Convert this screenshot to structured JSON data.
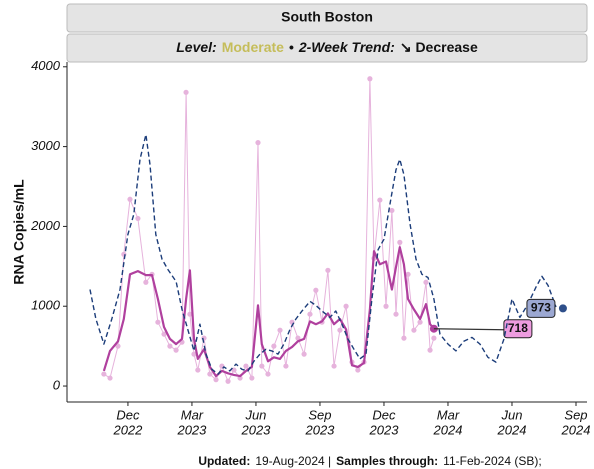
{
  "chart_data": {
    "type": "line",
    "title": "South Boston",
    "subtitle": [
      {
        "text": "Level:",
        "style": "bold-italic"
      },
      {
        "text": "Moderate",
        "style": "bold",
        "color": "#c5bd5a"
      },
      {
        "text": "•",
        "style": "bold"
      },
      {
        "text": "2-Week Trend:",
        "style": "bold-italic"
      },
      {
        "text": "↘ Decrease",
        "style": "bold"
      }
    ],
    "y_label": "RNA Copies/mL",
    "footer": [
      {
        "text": "Updated:",
        "style": "bold"
      },
      {
        "text": "19-Aug-2024 |"
      },
      {
        "text": "Samples through:",
        "style": "bold"
      },
      {
        "text": "11-Feb-2024 (SB);"
      }
    ],
    "xlim": [
      2022.679,
      2024.71
    ],
    "xticks": [
      {
        "value": 2022.917,
        "label": [
          "Dec",
          "2022"
        ]
      },
      {
        "value": 2023.167,
        "label": [
          "Mar",
          "2023"
        ]
      },
      {
        "value": 2023.417,
        "label": [
          "Jun",
          "2023"
        ]
      },
      {
        "value": 2023.667,
        "label": [
          "Sep",
          "2023"
        ]
      },
      {
        "value": 2023.917,
        "label": [
          "Dec",
          "2023"
        ]
      },
      {
        "value": 2024.167,
        "label": [
          "Mar",
          "2024"
        ]
      },
      {
        "value": 2024.417,
        "label": [
          "Jun",
          "2024"
        ]
      },
      {
        "value": 2024.667,
        "label": [
          "Sep",
          "2024"
        ]
      }
    ],
    "ylim": [
      -200,
      4060
    ],
    "yticks": [
      0,
      1000,
      2000,
      3000,
      4000
    ],
    "x": [
      2022.823,
      2022.847,
      2022.878,
      2022.901,
      2022.925,
      2022.956,
      2022.987,
      2023.011,
      2023.034,
      2023.058,
      2023.081,
      2023.105,
      2023.128,
      2023.144,
      2023.159,
      2023.175,
      2023.19,
      2023.214,
      2023.237,
      2023.261,
      2023.284,
      2023.308,
      2023.331,
      2023.355,
      2023.378,
      2023.401,
      2023.425,
      2023.44,
      2023.464,
      2023.487,
      2023.511,
      2023.534,
      2023.558,
      2023.581,
      2023.605,
      2023.628,
      2023.651,
      2023.675,
      2023.698,
      2023.722,
      2023.745,
      2023.769,
      2023.792,
      2023.815,
      2023.839,
      2023.862,
      2023.878,
      2023.901,
      2023.925,
      2023.948,
      2023.964,
      2023.979,
      2023.995,
      2024.011,
      2024.034,
      2024.058,
      2024.081,
      2024.097,
      2024.112
    ],
    "series": [
      {
        "kind": "samples",
        "color": "#e6b3dc",
        "markers": true,
        "width": 1,
        "values": [
          150,
          100,
          500,
          1650,
          2340,
          2100,
          1300,
          1400,
          800,
          650,
          500,
          450,
          550,
          3680,
          900,
          400,
          200,
          600,
          150,
          80,
          250,
          60,
          200,
          100,
          250,
          100,
          3050,
          250,
          150,
          500,
          700,
          250,
          800,
          600,
          400,
          900,
          1200,
          800,
          1450,
          250,
          700,
          1000,
          300,
          200,
          300,
          3850,
          1600,
          2330,
          1000,
          2200,
          900,
          1800,
          600,
          1400,
          700,
          800,
          1300,
          450,
          600
        ]
      },
      {
        "kind": "smooth",
        "color": "#b0409e",
        "width": 2.2,
        "label_color": "#ee9ce0",
        "values": [
          190,
          440,
          560,
          840,
          1400,
          1440,
          1390,
          1390,
          1090,
          740,
          590,
          525,
          590,
          1090,
          1450,
          590,
          340,
          460,
          240,
          125,
          190,
          160,
          140,
          125,
          190,
          240,
          1010,
          525,
          310,
          360,
          340,
          440,
          490,
          560,
          590,
          810,
          775,
          810,
          910,
          775,
          840,
          710,
          260,
          240,
          290,
          960,
          1690,
          1525,
          1560,
          1210,
          1490,
          1740,
          1525,
          1090,
          960,
          840,
          1025,
          775,
          718
        ],
        "value_labels": [
          null,
          null,
          null,
          null,
          null,
          null,
          null,
          null,
          null,
          null,
          null,
          null,
          null,
          null,
          null,
          null,
          null,
          null,
          null,
          null,
          null,
          null,
          null,
          null,
          null,
          null,
          null,
          null,
          null,
          null,
          null,
          null,
          null,
          null,
          null,
          null,
          null,
          null,
          null,
          null,
          null,
          null,
          null,
          null,
          null,
          null,
          null,
          null,
          null,
          null,
          null,
          null,
          null,
          null,
          null,
          null,
          null,
          null,
          "718"
        ]
      },
      {
        "kind": "dashed",
        "color": "#1c3d7a",
        "width": 1.4,
        "dash": true,
        "x": [
          2022.769,
          2022.792,
          2022.823,
          2022.854,
          2022.886,
          2022.917,
          2022.94,
          2022.964,
          2022.987,
          2023.003,
          2023.026,
          2023.05,
          2023.073,
          2023.105,
          2023.128,
          2023.151,
          2023.175,
          2023.198,
          2023.222,
          2023.245,
          2023.269,
          2023.292,
          2023.315,
          2023.339,
          2023.362,
          2023.386,
          2023.409,
          2023.433,
          2023.456,
          2023.479,
          2023.503,
          2023.526,
          2023.55,
          2023.573,
          2023.597,
          2023.628,
          2023.651,
          2023.675,
          2023.706,
          2023.729,
          2023.753,
          2023.776,
          2023.8,
          2023.823,
          2023.847,
          2023.87,
          2023.894,
          2023.917,
          2023.94,
          2023.964,
          2023.979,
          2023.995,
          2024.019,
          2024.042,
          2024.065,
          2024.089,
          2024.112,
          2024.136,
          2024.167,
          2024.198,
          2024.229,
          2024.261,
          2024.292,
          2024.323,
          2024.354,
          2024.386,
          2024.417,
          2024.448,
          2024.479,
          2024.511,
          2024.534,
          2024.558,
          2024.589
        ],
        "values": [
          1210,
          840,
          525,
          840,
          1210,
          1900,
          2150,
          2840,
          3150,
          2775,
          1900,
          1590,
          1460,
          1310,
          960,
          710,
          440,
          775,
          400,
          210,
          150,
          240,
          190,
          275,
          210,
          190,
          310,
          400,
          460,
          440,
          400,
          525,
          710,
          840,
          940,
          1060,
          1010,
          940,
          860,
          940,
          775,
          590,
          460,
          340,
          400,
          1090,
          1710,
          1840,
          2275,
          2710,
          2840,
          2650,
          2025,
          1590,
          1400,
          1360,
          1090,
          650,
          525,
          440,
          560,
          610,
          525,
          360,
          300,
          590,
          1090,
          860,
          1025,
          1240,
          1375,
          1260,
          990
        ]
      },
      {
        "kind": "point",
        "color": "#2e4f8a",
        "label_color": "#9ca8d2",
        "x": [
          2024.616
        ],
        "values": [
          973
        ],
        "value_labels": [
          "973"
        ]
      }
    ]
  }
}
